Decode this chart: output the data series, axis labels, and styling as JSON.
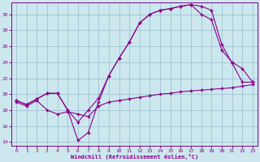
{
  "xlabel": "Windchill (Refroidissement éolien,°C)",
  "bg_color": "#cce8ee",
  "line_color": "#880088",
  "grid_color": "#99bbcc",
  "xmin": -0.5,
  "xmax": 23.5,
  "ymin": 13.5,
  "ymax": 31.5,
  "yticks": [
    14,
    16,
    18,
    20,
    22,
    24,
    26,
    28,
    30
  ],
  "xticks": [
    0,
    1,
    2,
    3,
    4,
    5,
    6,
    7,
    8,
    9,
    10,
    11,
    12,
    13,
    14,
    15,
    16,
    17,
    18,
    19,
    20,
    21,
    22,
    23
  ],
  "curve1_x": [
    0,
    1,
    2,
    3,
    4,
    5,
    6,
    7,
    8,
    9,
    10,
    11,
    12,
    13,
    14,
    15,
    16,
    17,
    18,
    19,
    20,
    21,
    22,
    23
  ],
  "curve1_y": [
    19.2,
    18.7,
    19.4,
    20.1,
    20.1,
    18.0,
    14.2,
    15.2,
    19.0,
    22.3,
    24.5,
    26.5,
    28.9,
    30.0,
    30.5,
    30.7,
    31.0,
    31.2,
    31.0,
    30.5,
    26.2,
    23.9,
    21.5,
    21.5
  ],
  "curve2_x": [
    0,
    1,
    2,
    3,
    4,
    5,
    6,
    7,
    8,
    9,
    10,
    11,
    12,
    13,
    14,
    15,
    16,
    17,
    18,
    19,
    20,
    21,
    22,
    23
  ],
  "curve2_y": [
    19.2,
    18.7,
    19.4,
    20.1,
    20.1,
    18.0,
    16.5,
    18.0,
    19.5,
    22.3,
    24.5,
    26.5,
    28.9,
    30.0,
    30.5,
    30.7,
    31.0,
    31.2,
    30.0,
    29.3,
    25.5,
    24.0,
    23.2,
    21.5
  ],
  "curve3_x": [
    0,
    1,
    2,
    3,
    4,
    5,
    6,
    7,
    8,
    9,
    10,
    11,
    12,
    13,
    14,
    15,
    16,
    17,
    18,
    19,
    20,
    21,
    22,
    23
  ],
  "curve3_y": [
    19.0,
    18.5,
    19.2,
    18.0,
    17.5,
    17.8,
    17.5,
    17.2,
    18.5,
    19.0,
    19.2,
    19.4,
    19.6,
    19.8,
    20.0,
    20.1,
    20.3,
    20.4,
    20.5,
    20.6,
    20.7,
    20.8,
    21.0,
    21.2
  ]
}
